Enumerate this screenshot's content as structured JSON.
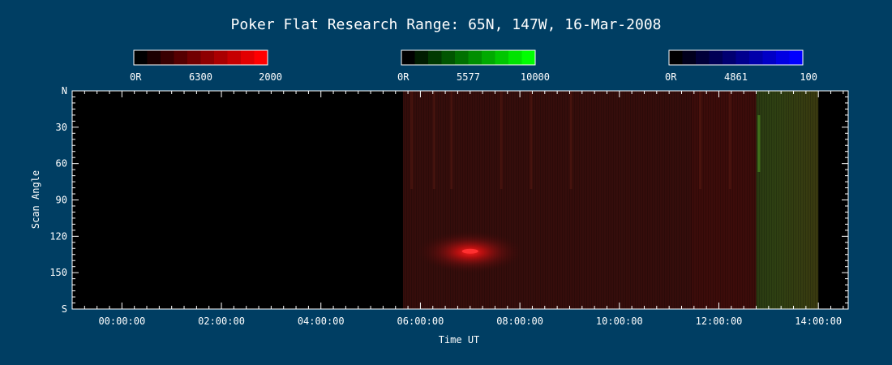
{
  "chart_data": {
    "type": "heatmap",
    "title": "Poker Flat Research Range: 65N, 147W, 16-Mar-2008",
    "xlabel": "Time UT",
    "ylabel": "Scan Angle",
    "x_ticks": [
      "00:00:00",
      "02:00:00",
      "04:00:00",
      "06:00:00",
      "08:00:00",
      "10:00:00",
      "12:00:00",
      "14:00:00"
    ],
    "y_ticks": [
      "N",
      "30",
      "60",
      "90",
      "120",
      "150",
      "S"
    ],
    "x_range_hours": [
      -1.0,
      14.6
    ],
    "y_range": [
      0,
      180
    ],
    "colorbars": [
      {
        "label_min": "0R",
        "label_mid": "6300",
        "label_max": "2000",
        "color": "#ff0000"
      },
      {
        "label_min": "0R",
        "label_mid": "5577",
        "label_max": "10000",
        "color": "#00ff00"
      },
      {
        "label_min": "0R",
        "label_mid": "4861",
        "label_max": "100",
        "color": "#0000ff"
      }
    ],
    "data_segments": [
      {
        "start_hour": 5.65,
        "end_hour": 11.45,
        "channel": "red",
        "level": 0.22
      },
      {
        "start_hour": 11.45,
        "end_hour": 12.75,
        "channel": "red",
        "level": 0.28
      },
      {
        "start_hour": 12.75,
        "end_hour": 14.0,
        "channel": "green",
        "level": 0.2
      }
    ],
    "bright_feature": {
      "hour": 7.0,
      "angle": 133,
      "channel": "red"
    }
  }
}
